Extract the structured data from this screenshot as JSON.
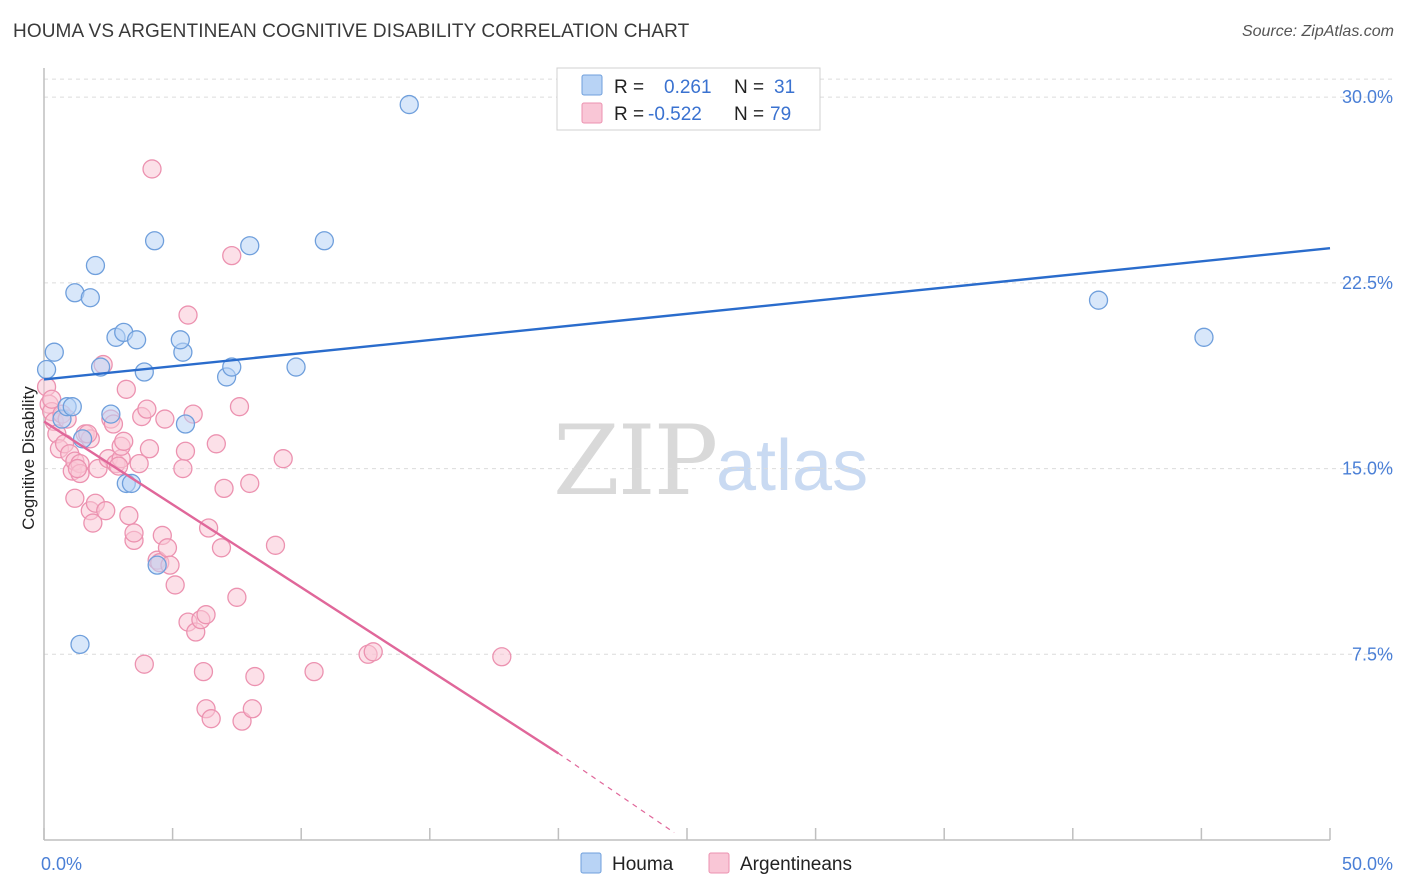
{
  "title": "HOUMA VS ARGENTINEAN COGNITIVE DISABILITY CORRELATION CHART",
  "source": "Source: ZipAtlas.com",
  "watermark": {
    "zip": "ZIP",
    "atlas": "atlas"
  },
  "colors": {
    "houma_fill": "#b8d3f5",
    "houma_stroke": "#6f9fdc",
    "houma_line": "#2a6ccc",
    "arg_fill": "#f9c6d6",
    "arg_stroke": "#ec92b0",
    "arg_line": "#e0679a",
    "grid": "#dcdcdc",
    "axis": "#bfbfbf"
  },
  "legend": {
    "houma": {
      "r_label": "R =",
      "r_value": "0.261",
      "n_label": "N =",
      "n_value": "31"
    },
    "arg": {
      "r_label": "R =",
      "r_value": "-0.522",
      "n_label": "N =",
      "n_value": "79"
    }
  },
  "bottom_legend": {
    "houma": "Houma",
    "arg": "Argentineans"
  },
  "chart_data": {
    "type": "scatter",
    "title": "HOUMA VS ARGENTINEAN COGNITIVE DISABILITY CORRELATION CHART",
    "xlabel": "",
    "ylabel": "Cognitive Disability",
    "xlim": [
      0,
      50
    ],
    "ylim": [
      0,
      31.5
    ],
    "x_tick_labels": [
      "0.0%",
      "50.0%"
    ],
    "y_ticks": [
      7.5,
      15.0,
      22.5,
      30.0
    ],
    "y_tick_labels": [
      "7.5%",
      "15.0%",
      "22.5%",
      "30.0%"
    ],
    "series": [
      {
        "name": "Houma",
        "points": [
          [
            0.1,
            19.0
          ],
          [
            0.4,
            19.7
          ],
          [
            0.7,
            17.0
          ],
          [
            0.9,
            17.5
          ],
          [
            1.1,
            17.5
          ],
          [
            1.2,
            22.1
          ],
          [
            1.4,
            7.9
          ],
          [
            1.5,
            16.2
          ],
          [
            1.8,
            21.9
          ],
          [
            2.0,
            23.2
          ],
          [
            2.2,
            19.1
          ],
          [
            2.6,
            17.2
          ],
          [
            2.8,
            20.3
          ],
          [
            3.1,
            20.5
          ],
          [
            3.2,
            14.4
          ],
          [
            3.4,
            14.4
          ],
          [
            3.6,
            20.2
          ],
          [
            3.9,
            18.9
          ],
          [
            4.3,
            24.2
          ],
          [
            4.4,
            11.1
          ],
          [
            5.4,
            19.7
          ],
          [
            5.3,
            20.2
          ],
          [
            5.5,
            16.8
          ],
          [
            7.1,
            18.7
          ],
          [
            7.3,
            19.1
          ],
          [
            8.0,
            24.0
          ],
          [
            9.8,
            19.1
          ],
          [
            10.9,
            24.2
          ],
          [
            14.2,
            29.7
          ],
          [
            41.0,
            21.8
          ],
          [
            45.1,
            20.3
          ]
        ]
      },
      {
        "name": "Argentineans",
        "points": [
          [
            0.1,
            18.3
          ],
          [
            0.2,
            17.6
          ],
          [
            0.3,
            17.3
          ],
          [
            0.4,
            16.9
          ],
          [
            0.5,
            16.4
          ],
          [
            0.7,
            17.2
          ],
          [
            0.6,
            15.8
          ],
          [
            0.8,
            16.0
          ],
          [
            0.9,
            17.0
          ],
          [
            1.0,
            15.6
          ],
          [
            1.1,
            14.9
          ],
          [
            1.2,
            15.3
          ],
          [
            1.2,
            13.8
          ],
          [
            1.4,
            15.2
          ],
          [
            1.4,
            14.8
          ],
          [
            1.6,
            16.4
          ],
          [
            1.8,
            16.2
          ],
          [
            1.7,
            16.4
          ],
          [
            1.8,
            13.3
          ],
          [
            1.9,
            12.8
          ],
          [
            2.0,
            13.6
          ],
          [
            2.1,
            15.0
          ],
          [
            2.3,
            19.2
          ],
          [
            2.4,
            13.3
          ],
          [
            2.5,
            15.4
          ],
          [
            2.6,
            17.0
          ],
          [
            2.7,
            16.8
          ],
          [
            2.8,
            15.2
          ],
          [
            3.0,
            15.4
          ],
          [
            3.0,
            15.9
          ],
          [
            3.1,
            16.1
          ],
          [
            3.2,
            18.2
          ],
          [
            3.3,
            13.1
          ],
          [
            3.5,
            12.1
          ],
          [
            3.5,
            12.4
          ],
          [
            3.7,
            15.2
          ],
          [
            3.8,
            17.1
          ],
          [
            3.9,
            7.1
          ],
          [
            4.0,
            17.4
          ],
          [
            4.1,
            15.8
          ],
          [
            4.2,
            27.1
          ],
          [
            4.4,
            11.3
          ],
          [
            4.5,
            11.2
          ],
          [
            4.6,
            12.3
          ],
          [
            4.7,
            17.0
          ],
          [
            4.8,
            11.8
          ],
          [
            4.9,
            11.1
          ],
          [
            5.1,
            10.3
          ],
          [
            5.4,
            15.0
          ],
          [
            5.5,
            15.7
          ],
          [
            5.6,
            21.2
          ],
          [
            5.6,
            8.8
          ],
          [
            5.8,
            17.2
          ],
          [
            5.9,
            8.4
          ],
          [
            6.1,
            8.9
          ],
          [
            6.2,
            6.8
          ],
          [
            6.3,
            9.1
          ],
          [
            6.3,
            5.3
          ],
          [
            6.4,
            12.6
          ],
          [
            6.5,
            4.9
          ],
          [
            6.7,
            16.0
          ],
          [
            6.9,
            11.8
          ],
          [
            7.0,
            14.2
          ],
          [
            7.3,
            23.6
          ],
          [
            7.5,
            9.8
          ],
          [
            7.6,
            17.5
          ],
          [
            7.7,
            4.8
          ],
          [
            8.0,
            14.4
          ],
          [
            8.1,
            5.3
          ],
          [
            8.2,
            6.6
          ],
          [
            9.0,
            11.9
          ],
          [
            9.3,
            15.4
          ],
          [
            10.5,
            6.8
          ],
          [
            12.6,
            7.5
          ],
          [
            12.8,
            7.6
          ],
          [
            17.8,
            7.4
          ],
          [
            0.3,
            17.8
          ],
          [
            1.3,
            15.0
          ],
          [
            2.9,
            15.1
          ]
        ]
      }
    ],
    "trendlines": [
      {
        "series": "Houma",
        "x": [
          0,
          50
        ],
        "y": [
          18.6,
          23.9
        ],
        "style": "solid"
      },
      {
        "series": "Argentineans",
        "x": [
          0,
          20
        ],
        "y": [
          16.9,
          3.5
        ],
        "style": "solid"
      },
      {
        "series": "Argentineans",
        "x": [
          20,
          24.5
        ],
        "y": [
          3.5,
          0.3
        ],
        "style": "dashed"
      }
    ]
  }
}
